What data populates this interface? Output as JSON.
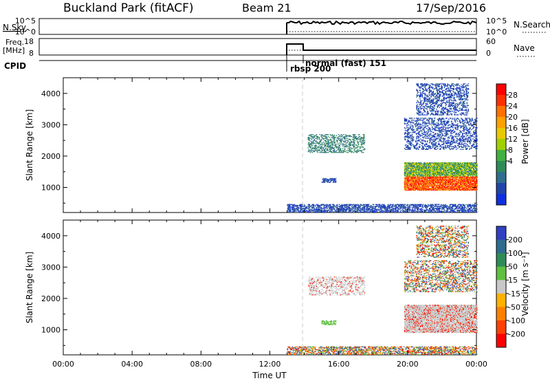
{
  "header": {
    "title": "Buckland Park (fitACF)",
    "beam": "Beam 21",
    "date": "17/Sep/2016"
  },
  "status_panels": {
    "nsky": {
      "label": "N.Sky",
      "ticks": [
        "10^5",
        "10^0"
      ],
      "right_label": "N.Search",
      "right_ticks": [
        "10^5",
        "10^0"
      ]
    },
    "freq": {
      "label_line1": "Freq.",
      "label_line2": "[MHz]",
      "ticks": [
        "18",
        "8"
      ],
      "right_label": "Nave",
      "right_ticks": [
        "60",
        "0"
      ]
    },
    "cpid": {
      "label": "CPID",
      "modes": [
        "rbsp 200",
        "normal (fast) 151"
      ]
    }
  },
  "colorbars": {
    "power": {
      "label": "Power [dB]",
      "ticks": [
        "28",
        "24",
        "20",
        "16",
        "12",
        "8",
        "4"
      ],
      "colors": [
        "#ff0000",
        "#ff3000",
        "#ff7000",
        "#ffa000",
        "#e8c800",
        "#a0d000",
        "#40b040",
        "#2e8b57",
        "#2f6e8c",
        "#2244aa",
        "#1030e0"
      ]
    },
    "velocity": {
      "label": "Velocity [m s⁻¹]",
      "ticks": [
        "200",
        "100",
        "50",
        "15",
        "-15",
        "-50",
        "-100",
        "-200"
      ],
      "colors": [
        "#3040c0",
        "#2e6b8e",
        "#2e8b57",
        "#60c040",
        "#c8c8c8",
        "#ffb000",
        "#ff8000",
        "#ff4000",
        "#ff0000"
      ]
    }
  },
  "chart_data": [
    {
      "type": "heatmap",
      "title": "Power",
      "xlabel": "Time UT",
      "ylabel": "Slant Range [km]",
      "xlim": [
        "00:00",
        "24:00"
      ],
      "ylim": [
        200,
        4500
      ],
      "x_ticks": [
        "00:00",
        "04:00",
        "08:00",
        "12:00",
        "16:00",
        "20:00",
        "00:00"
      ],
      "y_ticks": [
        1000,
        2000,
        3000,
        4000
      ],
      "regions": [
        {
          "t_start": 13.0,
          "t_end": 24.0,
          "range_min": 200,
          "range_max": 450,
          "level": "4-8 dB"
        },
        {
          "t_start": 14.2,
          "t_end": 17.5,
          "range_min": 2100,
          "range_max": 2700,
          "level": "8-12 dB"
        },
        {
          "t_start": 15.0,
          "t_end": 15.8,
          "range_min": 1150,
          "range_max": 1300,
          "level": "4-8 dB"
        },
        {
          "t_start": 19.8,
          "t_end": 24.0,
          "range_min": 900,
          "range_max": 1800,
          "level": "16-28 dB"
        },
        {
          "t_start": 19.8,
          "t_end": 24.0,
          "range_min": 2200,
          "range_max": 3200,
          "level": "4-8 dB"
        },
        {
          "t_start": 20.5,
          "t_end": 23.5,
          "range_min": 3300,
          "range_max": 4300,
          "level": "4-8 dB"
        }
      ]
    },
    {
      "type": "heatmap",
      "title": "Velocity",
      "xlabel": "Time UT",
      "ylabel": "Slant Range [km]",
      "xlim": [
        "00:00",
        "24:00"
      ],
      "ylim": [
        200,
        4500
      ],
      "x_ticks": [
        "00:00",
        "04:00",
        "08:00",
        "12:00",
        "16:00",
        "20:00",
        "00:00"
      ],
      "y_ticks": [
        1000,
        2000,
        3000,
        4000
      ],
      "regions": [
        {
          "t_start": 13.0,
          "t_end": 24.0,
          "range_min": 200,
          "range_max": 450,
          "level": "mixed"
        },
        {
          "t_start": 14.2,
          "t_end": 17.5,
          "range_min": 2100,
          "range_max": 2700,
          "level": "-15 to 15"
        },
        {
          "t_start": 15.0,
          "t_end": 15.8,
          "range_min": 1150,
          "range_max": 1300,
          "level": "15 to 50"
        },
        {
          "t_start": 19.8,
          "t_end": 24.0,
          "range_min": 900,
          "range_max": 1800,
          "level": "-15 to 15"
        },
        {
          "t_start": 19.8,
          "t_end": 24.0,
          "range_min": 2200,
          "range_max": 3200,
          "level": "mixed"
        },
        {
          "t_start": 20.5,
          "t_end": 23.5,
          "range_min": 3300,
          "range_max": 4300,
          "level": "mixed"
        }
      ]
    }
  ]
}
